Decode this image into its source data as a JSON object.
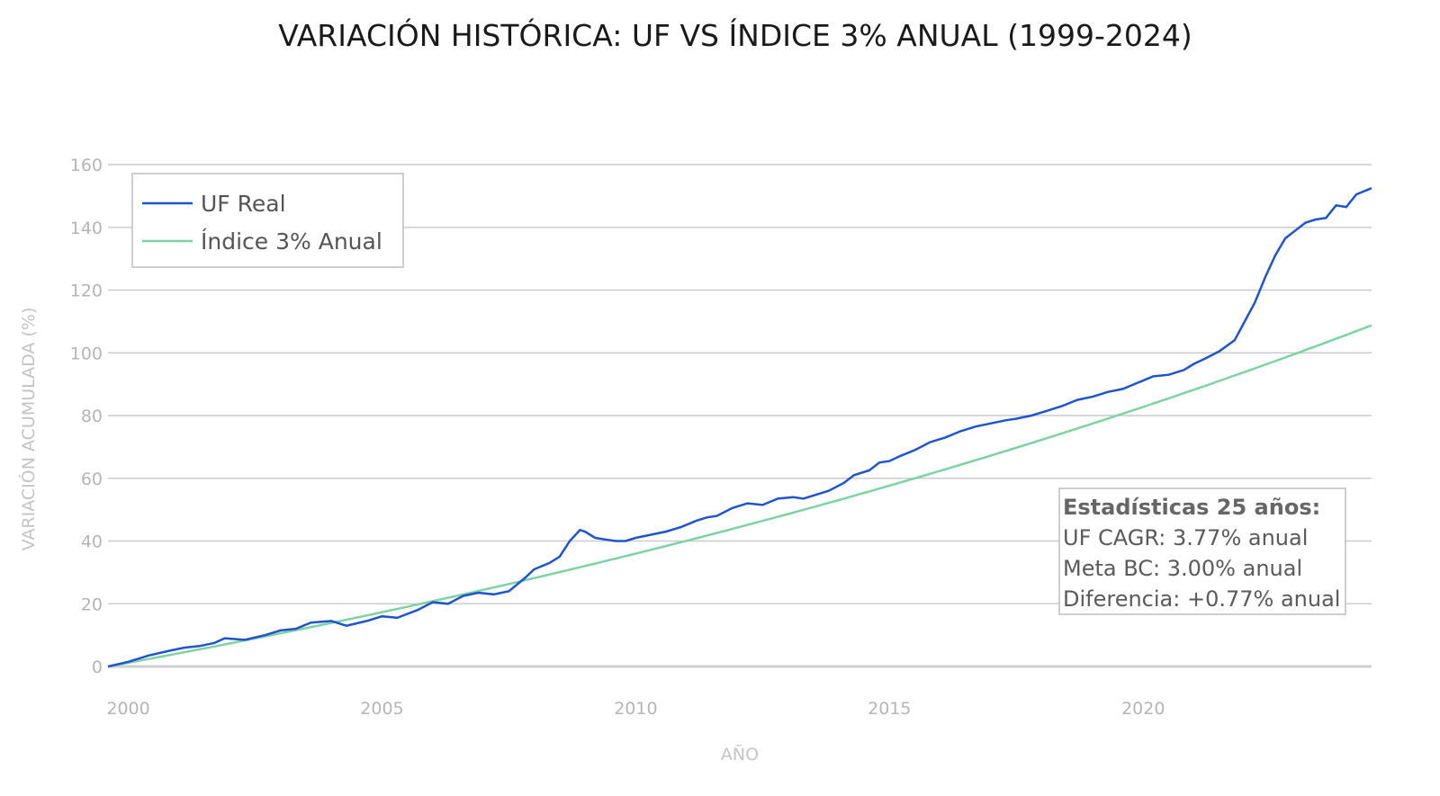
{
  "chart_data": {
    "type": "line",
    "title": "VARIACIÓN HISTÓRICA: UF VS ÍNDICE 3% ANUAL (1999-2024)",
    "xlabel": "AÑO",
    "ylabel": "VARIACIÓN ACUMULADA (%)",
    "xlim": [
      1999.6,
      2024.5
    ],
    "ylim": [
      0,
      160
    ],
    "xticks": [
      2000,
      2005,
      2010,
      2015,
      2020
    ],
    "yticks": [
      0,
      20,
      40,
      60,
      80,
      100,
      120,
      140,
      160
    ],
    "grid": true,
    "legend_position": "top-left",
    "series": [
      {
        "name": "UF Real",
        "color": "#1f55c9",
        "x": [
          1999.6,
          2000.0,
          2000.4,
          2000.8,
          2001.1,
          2001.4,
          2001.7,
          2001.9,
          2002.3,
          2002.7,
          2003.0,
          2003.3,
          2003.6,
          2004.0,
          2004.3,
          2004.7,
          2005.0,
          2005.3,
          2005.7,
          2006.0,
          2006.3,
          2006.6,
          2006.9,
          2007.2,
          2007.5,
          2007.8,
          2008.0,
          2008.3,
          2008.5,
          2008.7,
          2008.9,
          2009.0,
          2009.2,
          2009.4,
          2009.6,
          2009.8,
          2010.0,
          2010.3,
          2010.6,
          2010.9,
          2011.2,
          2011.4,
          2011.6,
          2011.9,
          2012.2,
          2012.5,
          2012.8,
          2013.1,
          2013.3,
          2013.5,
          2013.8,
          2014.1,
          2014.3,
          2014.6,
          2014.8,
          2015.0,
          2015.2,
          2015.5,
          2015.8,
          2016.1,
          2016.4,
          2016.7,
          2017.0,
          2017.3,
          2017.5,
          2017.8,
          2018.1,
          2018.4,
          2018.7,
          2019.0,
          2019.3,
          2019.6,
          2019.9,
          2020.2,
          2020.5,
          2020.8,
          2021.0,
          2021.2,
          2021.5,
          2021.8,
          2022.0,
          2022.2,
          2022.4,
          2022.6,
          2022.8,
          2023.0,
          2023.2,
          2023.4,
          2023.6,
          2023.8,
          2024.0,
          2024.2,
          2024.5
        ],
        "values": [
          0.0,
          1.5,
          3.5,
          5.0,
          6.0,
          6.5,
          7.5,
          9.0,
          8.5,
          10.0,
          11.5,
          12.0,
          14.0,
          14.5,
          13.0,
          14.5,
          16.0,
          15.5,
          18.0,
          20.5,
          20.0,
          22.5,
          23.5,
          23.0,
          24.0,
          28.0,
          31.0,
          33.0,
          35.0,
          40.0,
          43.5,
          43.0,
          41.0,
          40.5,
          40.0,
          40.0,
          41.0,
          42.0,
          43.0,
          44.5,
          46.5,
          47.5,
          48.0,
          50.5,
          52.0,
          51.5,
          53.5,
          54.0,
          53.5,
          54.5,
          56.0,
          58.5,
          61.0,
          62.5,
          65.0,
          65.5,
          67.0,
          69.0,
          71.5,
          73.0,
          75.0,
          76.5,
          77.5,
          78.5,
          79.0,
          80.0,
          81.5,
          83.0,
          85.0,
          86.0,
          87.5,
          88.5,
          90.5,
          92.5,
          93.0,
          94.5,
          96.5,
          98.0,
          100.5,
          104.0,
          110.0,
          116.0,
          124.0,
          131.0,
          136.5,
          139.0,
          141.5,
          142.5,
          143.0,
          147.0,
          146.5,
          150.5,
          152.5
        ]
      },
      {
        "name": "Índice 3% Anual",
        "color": "#7fd1a6",
        "growth_rate": 0.03,
        "start_year": 1999.6
      }
    ],
    "annotation": {
      "title": "Estadísticas 25 años:",
      "lines": [
        "UF CAGR: 3.77% anual",
        "Meta BC: 3.00% anual",
        "Diferencia: +0.77% anual"
      ]
    }
  }
}
